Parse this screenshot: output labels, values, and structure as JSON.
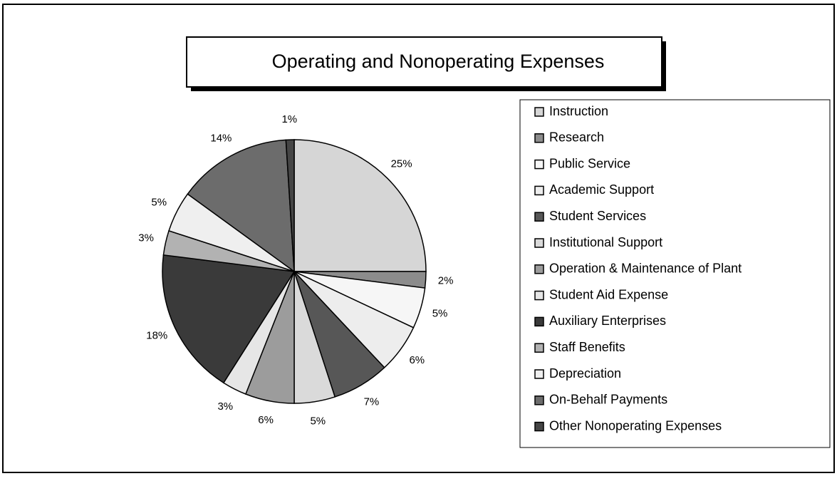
{
  "chart_data": {
    "type": "pie",
    "title": "Operating and Nonoperating Expenses",
    "categories": [
      "Instruction",
      "Research",
      "Public Service",
      "Academic Support",
      "Student Services",
      "Institutional Support",
      "Operation & Maintenance of Plant",
      "Student Aid Expense",
      "Auxiliary Enterprises",
      "Staff Benefits",
      "Depreciation",
      "On-Behalf Payments",
      "Other Nonoperating Expenses"
    ],
    "values": [
      25,
      2,
      5,
      6,
      7,
      5,
      6,
      3,
      18,
      3,
      5,
      14,
      1
    ],
    "value_labels": [
      "25%",
      "2%",
      "5%",
      "6%",
      "7%",
      "5%",
      "6%",
      "3%",
      "18%",
      "3%",
      "5%",
      "14%",
      "1%"
    ],
    "colors": [
      "#d6d6d6",
      "#8c8c8c",
      "#f6f6f6",
      "#ededed",
      "#575757",
      "#dadada",
      "#9c9c9c",
      "#e6e6e6",
      "#3a3a3a",
      "#b2b2b2",
      "#efefef",
      "#6c6c6c",
      "#454545"
    ],
    "legend": "right"
  }
}
